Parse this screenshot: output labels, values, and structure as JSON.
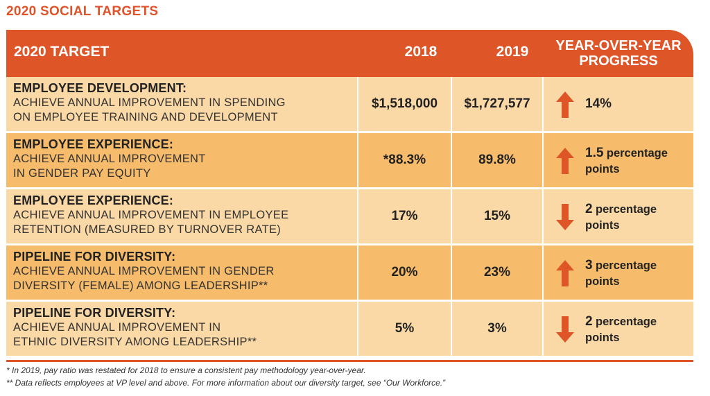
{
  "title": "2020 SOCIAL TARGETS",
  "header": {
    "target": "2020 TARGET",
    "y2018": "2018",
    "y2019": "2019",
    "progress_line1": "YEAR-OVER-YEAR",
    "progress_line2": "PROGRESS"
  },
  "colors": {
    "accent": "#de5527",
    "row_light": "#fbd9a6",
    "row_dark": "#f6bb6b",
    "title": "#e0532a"
  },
  "rows": [
    {
      "category": "EMPLOYEE DEVELOPMENT:",
      "desc1": "ACHIEVE ANNUAL IMPROVEMENT IN SPENDING",
      "desc2": "ON EMPLOYEE TRAINING AND DEVELOPMENT",
      "v2018": "$1,518,000",
      "v2019": "$1,727,577",
      "direction": "up",
      "icon": "arrow-up-icon",
      "progress_num": "14%",
      "progress_unit": ""
    },
    {
      "category": "EMPLOYEE EXPERIENCE:",
      "desc1": "ACHIEVE ANNUAL IMPROVEMENT",
      "desc2": "IN GENDER PAY EQUITY",
      "v2018": "*88.3%",
      "v2019": "89.8%",
      "direction": "up",
      "icon": "arrow-up-icon",
      "progress_num": "1.5",
      "progress_unit": "percentage",
      "progress_unit2": "points"
    },
    {
      "category": "EMPLOYEE EXPERIENCE:",
      "desc1": "ACHIEVE ANNUAL IMPROVEMENT IN EMPLOYEE",
      "desc2": "RETENTION (MEASURED BY TURNOVER RATE)",
      "v2018": "17%",
      "v2019": "15%",
      "direction": "down",
      "icon": "arrow-down-icon",
      "progress_num": "2",
      "progress_unit": "percentage",
      "progress_unit2": "points"
    },
    {
      "category": "PIPELINE FOR DIVERSITY:",
      "desc1": "ACHIEVE ANNUAL IMPROVEMENT IN GENDER",
      "desc2": "DIVERSITY (FEMALE) AMONG LEADERSHIP**",
      "v2018": "20%",
      "v2019": "23%",
      "direction": "up",
      "icon": "arrow-up-icon",
      "progress_num": "3",
      "progress_unit": "percentage",
      "progress_unit2": "points"
    },
    {
      "category": "PIPELINE FOR DIVERSITY:",
      "desc1": "ACHIEVE ANNUAL IMPROVEMENT IN",
      "desc2": "ETHNIC DIVERSITY AMONG LEADERSHIP**",
      "v2018": "5%",
      "v2019": "3%",
      "direction": "down",
      "icon": "arrow-down-icon",
      "progress_num": "2",
      "progress_unit": "percentage",
      "progress_unit2": "points"
    }
  ],
  "footnotes": [
    "* In 2019, pay ratio was restated for 2018 to ensure a consistent pay methodology year-over-year.",
    "** Data reflects employees at VP level and above. For more information about our diversity target, see “Our Workforce.”"
  ]
}
